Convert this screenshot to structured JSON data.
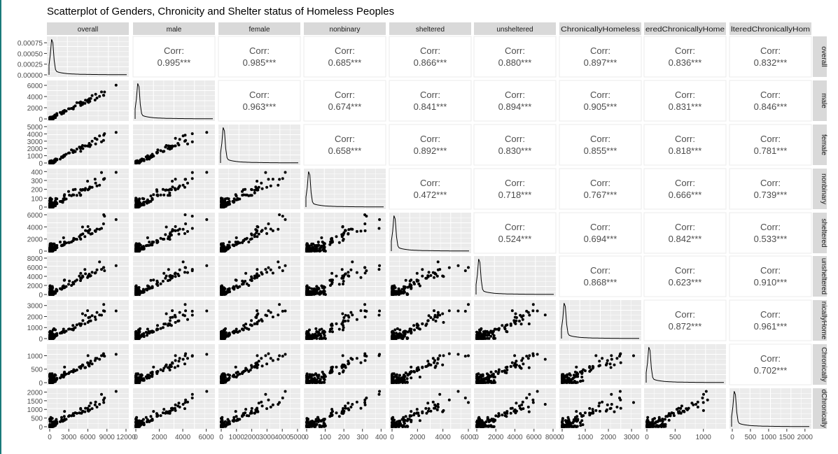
{
  "chart_data": {
    "type": "scatter",
    "title": "Scatterplot of Genders, Chronicity and Shelter status of Homeless Peoples",
    "variables": [
      "overall",
      "male",
      "female",
      "nonbinary",
      "sheltered",
      "unsheltered",
      "ChronicallyHomeless",
      "ShelteredChronicallyHomeless",
      "UnshelteredChronicallyHomeless"
    ],
    "strip_labels": [
      "overall",
      "male",
      "female",
      "nonbinary",
      "sheltered",
      "unsheltered",
      "ChronicallyHomeless",
      "eredChronicallyHome",
      "lteredChronicallyHom"
    ],
    "row_strip_labels": [
      "overall",
      "male",
      "female",
      "nonbinary",
      "sheltered",
      "unsheltered",
      "nicallyHome",
      "Chronically",
      "dChronically"
    ],
    "corr_prefix": "Corr:",
    "correlations": {
      "0-1": "0.995***",
      "0-2": "0.985***",
      "0-3": "0.685***",
      "0-4": "0.866***",
      "0-5": "0.880***",
      "0-6": "0.897***",
      "0-7": "0.836***",
      "0-8": "0.832***",
      "1-2": "0.963***",
      "1-3": "0.674***",
      "1-4": "0.841***",
      "1-5": "0.894***",
      "1-6": "0.905***",
      "1-7": "0.831***",
      "1-8": "0.846***",
      "2-3": "0.658***",
      "2-4": "0.892***",
      "2-5": "0.830***",
      "2-6": "0.855***",
      "2-7": "0.818***",
      "2-8": "0.781***",
      "3-4": "0.472***",
      "3-5": "0.718***",
      "3-6": "0.767***",
      "3-7": "0.666***",
      "3-8": "0.739***",
      "4-5": "0.524***",
      "4-6": "0.694***",
      "4-7": "0.842***",
      "4-8": "0.533***",
      "5-6": "0.868***",
      "5-7": "0.623***",
      "5-8": "0.910***",
      "6-7": "0.872***",
      "6-8": "0.961***",
      "7-8": "0.702***"
    },
    "ranges": [
      [
        0,
        12000
      ],
      [
        0,
        6500
      ],
      [
        0,
        5000
      ],
      [
        0,
        410
      ],
      [
        0,
        6000
      ],
      [
        0,
        8000
      ],
      [
        0,
        3300
      ],
      [
        0,
        1350
      ],
      [
        0,
        2100
      ]
    ],
    "density_ylim": [
      0,
      0.00085
    ],
    "density_yticks": [
      "0.00000",
      "0.00025",
      "0.00050",
      "0.00075"
    ],
    "y_ticks": [
      [],
      [
        "0",
        "2000",
        "4000",
        "6000"
      ],
      [
        "0",
        "1000",
        "2000",
        "3000",
        "4000",
        "5000"
      ],
      [
        "0",
        "100",
        "200",
        "300",
        "400"
      ],
      [
        "0",
        "2000",
        "4000",
        "6000"
      ],
      [
        "0",
        "2000",
        "4000",
        "6000",
        "8000"
      ],
      [
        "0",
        "1000",
        "2000",
        "3000"
      ],
      [
        "0",
        "500",
        "1000"
      ],
      [
        "0",
        "500",
        "1000",
        "1500",
        "2000"
      ]
    ],
    "x_ticks": [
      [
        "0",
        "3000",
        "6000",
        "9000",
        "12000"
      ],
      [
        "0",
        "2000",
        "4000",
        "6000"
      ],
      [
        "0",
        "1000",
        "2000",
        "3000",
        "4000",
        "5000"
      ],
      [
        "0",
        "100",
        "200",
        "300",
        "400"
      ],
      [
        "0",
        "2000",
        "4000",
        "6000"
      ],
      [
        "0",
        "2000",
        "4000",
        "6000",
        "8000"
      ],
      [
        "0",
        "1000",
        "2000",
        "3000"
      ],
      [
        "0",
        "500",
        "1000"
      ],
      [
        "0",
        "500",
        "1000",
        "1500",
        "2000"
      ]
    ],
    "grid": true,
    "colors": {
      "panel_bg": "#ebebeb",
      "grid": "#ffffff",
      "strip_bg": "#d9d9d9",
      "point": "#000000",
      "axis_text": "#4d4d4d"
    }
  }
}
